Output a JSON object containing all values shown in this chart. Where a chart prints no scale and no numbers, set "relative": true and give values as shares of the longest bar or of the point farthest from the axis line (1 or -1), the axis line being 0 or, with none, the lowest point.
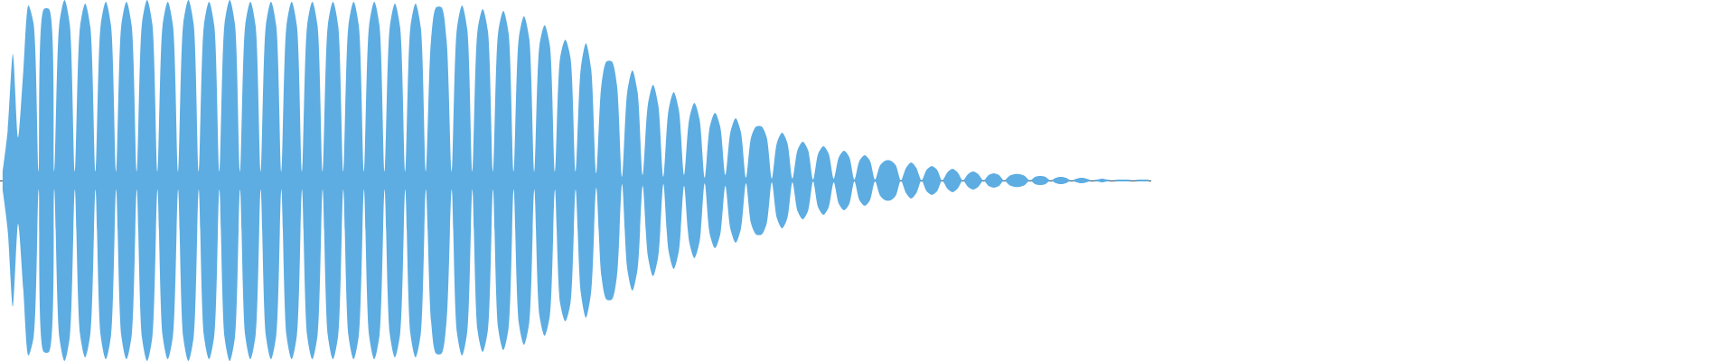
{
  "chart_data": {
    "type": "area",
    "relative": true,
    "categories": [
      null,
      null,
      null,
      null,
      null,
      null,
      null,
      null,
      null,
      null,
      null,
      null,
      null,
      null,
      null,
      null,
      null,
      null,
      null,
      null,
      null,
      null,
      null,
      null,
      null,
      null,
      null,
      null,
      null,
      null,
      null,
      null,
      null,
      null,
      null,
      null,
      null,
      null,
      null,
      null,
      null,
      null,
      null,
      null,
      null,
      null,
      null,
      null,
      null,
      null,
      null,
      null,
      null,
      null,
      null,
      null,
      null,
      null,
      null,
      null,
      null,
      null,
      null,
      null,
      null,
      null,
      null,
      null,
      null,
      null,
      null,
      null,
      null,
      null,
      null,
      null,
      null,
      null,
      null,
      null,
      null,
      null,
      null,
      null,
      null,
      null,
      null,
      null,
      null,
      null,
      null,
      null,
      null,
      null,
      null,
      null,
      null,
      null,
      null,
      null,
      null,
      null,
      null,
      null,
      null,
      null,
      null,
      null,
      null,
      null,
      null,
      null,
      null,
      null,
      null,
      null,
      null,
      null,
      null,
      null,
      null,
      null,
      null,
      null,
      null,
      null,
      null,
      null,
      null,
      null,
      null,
      null,
      null,
      null,
      null,
      null,
      null,
      null,
      null,
      null,
      null,
      null,
      null,
      null,
      null,
      null,
      null,
      null,
      null,
      null,
      null,
      null,
      null,
      null,
      null,
      null,
      null,
      null,
      null,
      null,
      null,
      null,
      null,
      null,
      null,
      null,
      null,
      null,
      null,
      null,
      null,
      null,
      null,
      null,
      null,
      null,
      null,
      null,
      null,
      null,
      null,
      null,
      null,
      null,
      null,
      null,
      null,
      null,
      null,
      null,
      null,
      null,
      null,
      null,
      null,
      null,
      null,
      null,
      null,
      null,
      null,
      null,
      null,
      null,
      null,
      null,
      null,
      null,
      null,
      null,
      null,
      null,
      null,
      null,
      null,
      null,
      null,
      null,
      null,
      null,
      null,
      null,
      null
    ],
    "series": [
      {
        "color": "#5dade2",
        "values": [
          0.05,
          0.28,
          0.7,
          0.24,
          0.6,
          0.97,
          0.87,
          0.05,
          0.95,
          0.95,
          0.05,
          0.87,
          1,
          0.87,
          0.05,
          0.85,
          0.98,
          0.85,
          0.05,
          0.86,
          0.99,
          0.86,
          0.05,
          0.86,
          0.99,
          0.86,
          0.05,
          0.87,
          1,
          0.87,
          0.05,
          0.86,
          0.99,
          0.86,
          0.05,
          0.87,
          1,
          0.87,
          0.05,
          0.86,
          0.99,
          0.86,
          0.05,
          0.87,
          1,
          0.87,
          0.05,
          0.86,
          0.99,
          0.86,
          0.05,
          0.86,
          0.99,
          0.86,
          0.05,
          0.86,
          0.99,
          0.86,
          0.05,
          0.86,
          0.99,
          0.86,
          0.05,
          0.86,
          0.99,
          0.86,
          0.05,
          0.86,
          0.99,
          0.86,
          0.05,
          0.86,
          0.99,
          0.86,
          0.05,
          0.85,
          0.98,
          0.85,
          0.05,
          0.85,
          0.98,
          0.85,
          0.05,
          0.78,
          0.96,
          0.96,
          0.78,
          0.05,
          0.84,
          0.97,
          0.84,
          0.05,
          0.83,
          0.95,
          0.83,
          0.05,
          0.82,
          0.94,
          0.82,
          0.05,
          0.79,
          0.91,
          0.79,
          0.05,
          0.75,
          0.86,
          0.75,
          0.05,
          0.68,
          0.78,
          0.68,
          0.05,
          0.62,
          0.76,
          0.62,
          0.04,
          0.53,
          0.66,
          0.66,
          0.53,
          0.02,
          0.49,
          0.61,
          0.49,
          0.03,
          0.42,
          0.53,
          0.42,
          0.02,
          0.39,
          0.49,
          0.39,
          0.03,
          0.34,
          0.43,
          0.34,
          0.015,
          0.3,
          0.375,
          0.3,
          0.03,
          0.27,
          0.345,
          0.27,
          0.015,
          0.24,
          0.3,
          0.3,
          0.24,
          0.01,
          0.21,
          0.265,
          0.21,
          0.01,
          0.17,
          0.215,
          0.17,
          0.005,
          0.15,
          0.19,
          0.15,
          0.01,
          0.13,
          0.165,
          0.13,
          0.005,
          0.11,
          0.14,
          0.11,
          0.005,
          0.085,
          0.11,
          0.11,
          0.085,
          0,
          0.07,
          0.1,
          0.07,
          0,
          0.06,
          0.08,
          0.06,
          0,
          0.045,
          0.065,
          0.045,
          0,
          0.035,
          0.05,
          0.035,
          0,
          0.03,
          0.04,
          0.03,
          0,
          0.025,
          0.035,
          0.035,
          0.025,
          0,
          0.02,
          0.025,
          0.02,
          0,
          0.015,
          0.02,
          0.015,
          0,
          0.01,
          0.015,
          0.01,
          0,
          0.005,
          0.01,
          0.005,
          0,
          0.005,
          0.005,
          0.005,
          0,
          0.005,
          0.005,
          0.005
        ]
      },
      {
        "color": "#5dade2",
        "values": [
          -0.05,
          -0.28,
          -0.7,
          -0.24,
          -0.6,
          -0.97,
          -0.87,
          -0.05,
          -0.95,
          -0.95,
          -0.05,
          -0.87,
          -1,
          -0.87,
          -0.05,
          -0.85,
          -0.98,
          -0.85,
          -0.05,
          -0.86,
          -0.99,
          -0.86,
          -0.05,
          -0.86,
          -0.99,
          -0.86,
          -0.05,
          -0.87,
          -1,
          -0.87,
          -0.05,
          -0.86,
          -0.99,
          -0.86,
          -0.05,
          -0.87,
          -1,
          -0.87,
          -0.05,
          -0.86,
          -0.99,
          -0.86,
          -0.05,
          -0.87,
          -1,
          -0.87,
          -0.05,
          -0.86,
          -0.99,
          -0.86,
          -0.05,
          -0.86,
          -0.99,
          -0.86,
          -0.05,
          -0.86,
          -0.99,
          -0.86,
          -0.05,
          -0.86,
          -0.99,
          -0.86,
          -0.05,
          -0.86,
          -0.99,
          -0.86,
          -0.05,
          -0.86,
          -0.99,
          -0.86,
          -0.05,
          -0.86,
          -0.99,
          -0.86,
          -0.05,
          -0.85,
          -0.98,
          -0.85,
          -0.05,
          -0.85,
          -0.98,
          -0.85,
          -0.05,
          -0.78,
          -0.96,
          -0.96,
          -0.78,
          -0.05,
          -0.84,
          -0.97,
          -0.84,
          -0.05,
          -0.83,
          -0.95,
          -0.83,
          -0.05,
          -0.82,
          -0.94,
          -0.82,
          -0.05,
          -0.79,
          -0.91,
          -0.79,
          -0.05,
          -0.75,
          -0.86,
          -0.75,
          -0.05,
          -0.68,
          -0.78,
          -0.68,
          -0.05,
          -0.62,
          -0.76,
          -0.62,
          -0.04,
          -0.53,
          -0.66,
          -0.66,
          -0.53,
          -0.02,
          -0.49,
          -0.61,
          -0.49,
          -0.03,
          -0.42,
          -0.53,
          -0.42,
          -0.02,
          -0.39,
          -0.49,
          -0.39,
          -0.03,
          -0.34,
          -0.43,
          -0.34,
          -0.015,
          -0.3,
          -0.375,
          -0.3,
          -0.03,
          -0.27,
          -0.345,
          -0.27,
          -0.015,
          -0.24,
          -0.3,
          -0.3,
          -0.24,
          -0.01,
          -0.21,
          -0.265,
          -0.21,
          -0.01,
          -0.17,
          -0.215,
          -0.17,
          -0.005,
          -0.15,
          -0.19,
          -0.15,
          -0.01,
          -0.13,
          -0.165,
          -0.13,
          -0.005,
          -0.11,
          -0.14,
          -0.11,
          -0.005,
          -0.085,
          -0.11,
          -0.11,
          -0.085,
          0,
          -0.07,
          -0.1,
          -0.07,
          0,
          -0.06,
          -0.08,
          -0.06,
          0,
          -0.045,
          -0.065,
          -0.045,
          0,
          -0.035,
          -0.05,
          -0.035,
          0,
          -0.03,
          -0.04,
          -0.03,
          0,
          -0.025,
          -0.035,
          -0.035,
          -0.025,
          0,
          -0.02,
          -0.025,
          -0.02,
          0,
          -0.015,
          -0.02,
          -0.015,
          0,
          -0.01,
          -0.015,
          -0.01,
          0,
          -0.005,
          -0.01,
          -0.005,
          0,
          -0.005,
          -0.005,
          -0.005,
          0,
          -0.005,
          -0.005,
          -0.005
        ]
      }
    ]
  }
}
